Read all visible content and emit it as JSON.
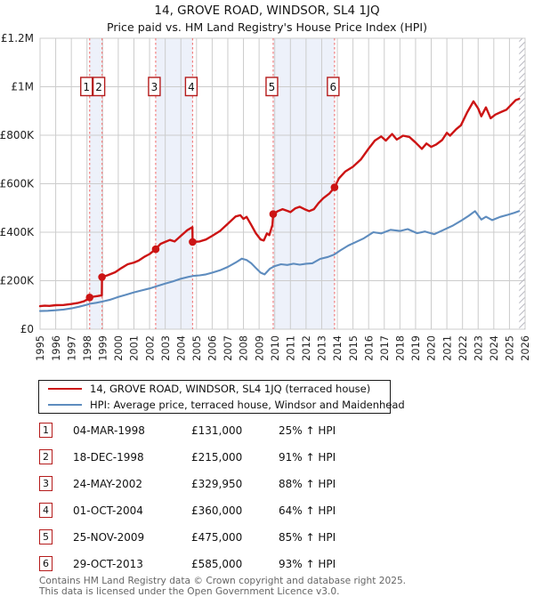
{
  "header": {
    "title": "14, GROVE ROAD, WINDSOR, SL4 1JQ",
    "subtitle": "Price paid vs. HM Land Registry's House Price Index (HPI)"
  },
  "colors": {
    "property": "#cc1414",
    "hpi": "#5e8cbe",
    "dashed": "#f27f7f",
    "band": "#edf1fa",
    "grid": "#cccccc",
    "box_border": "#b51b1b",
    "hatch": "#b9b9c2",
    "footer_text": "#666666"
  },
  "legend": {
    "items": [
      {
        "color_key": "property",
        "label": "14, GROVE ROAD, WINDSOR, SL4 1JQ (terraced house)"
      },
      {
        "color_key": "hpi",
        "label": "HPI: Average price, terraced house, Windsor and Maidenhead"
      }
    ]
  },
  "table": {
    "rows": [
      {
        "num": "1",
        "date": "04-MAR-1998",
        "price": "£131,000",
        "hpi": "25% ↑ HPI"
      },
      {
        "num": "2",
        "date": "18-DEC-1998",
        "price": "£215,000",
        "hpi": "91% ↑ HPI"
      },
      {
        "num": "3",
        "date": "24-MAY-2002",
        "price": "£329,950",
        "hpi": "88% ↑ HPI"
      },
      {
        "num": "4",
        "date": "01-OCT-2004",
        "price": "£360,000",
        "hpi": "64% ↑ HPI"
      },
      {
        "num": "5",
        "date": "25-NOV-2009",
        "price": "£475,000",
        "hpi": "85% ↑ HPI"
      },
      {
        "num": "6",
        "date": "29-OCT-2013",
        "price": "£585,000",
        "hpi": "93% ↑ HPI"
      }
    ]
  },
  "footer": {
    "line1": "Contains HM Land Registry data © Crown copyright and database right 2025.",
    "line2": "This data is licensed under the Open Government Licence v3.0."
  },
  "chart_data": {
    "type": "line",
    "title": "14, GROVE ROAD, WINDSOR, SL4 1JQ — Price paid vs. HPI",
    "xlabel": "",
    "ylabel": "",
    "xlim": [
      1995,
      2026
    ],
    "ylim": [
      0,
      1200000
    ],
    "grid": true,
    "legend_position": "below",
    "x_ticks": [
      1995,
      1996,
      1997,
      1998,
      1999,
      2000,
      2001,
      2002,
      2003,
      2004,
      2005,
      2006,
      2007,
      2008,
      2009,
      2010,
      2011,
      2012,
      2013,
      2014,
      2015,
      2016,
      2017,
      2018,
      2019,
      2020,
      2021,
      2022,
      2023,
      2024,
      2025,
      2026
    ],
    "y_ticks": [
      {
        "v": 0,
        "label": "£0"
      },
      {
        "v": 200000,
        "label": "£200K"
      },
      {
        "v": 400000,
        "label": "£400K"
      },
      {
        "v": 600000,
        "label": "£600K"
      },
      {
        "v": 800000,
        "label": "£800K"
      },
      {
        "v": 1000000,
        "label": "£1M"
      },
      {
        "v": 1200000,
        "label": "£1.2M"
      }
    ],
    "ownership_bands": [
      [
        1998.17,
        1998.96
      ],
      [
        2002.39,
        2004.75
      ],
      [
        2009.9,
        2013.82
      ]
    ],
    "future_hatch_start": 2025.62,
    "transactions": [
      {
        "n": "1",
        "x": 1998.17,
        "price": 131000,
        "date": "04-MAR-1998"
      },
      {
        "n": "2",
        "x": 1998.96,
        "price": 215000,
        "date": "18-DEC-1998"
      },
      {
        "n": "3",
        "x": 2002.39,
        "price": 329950,
        "date": "24-MAY-2002"
      },
      {
        "n": "4",
        "x": 2004.75,
        "price": 360000,
        "date": "01-OCT-2004"
      },
      {
        "n": "5",
        "x": 2009.9,
        "price": 475000,
        "date": "25-NOV-2009"
      },
      {
        "n": "6",
        "x": 2013.82,
        "price": 585000,
        "date": "29-OCT-2013"
      }
    ],
    "series": [
      {
        "name": "14, GROVE ROAD, WINDSOR, SL4 1JQ (terraced house)",
        "color_key": "property",
        "width": 2.4,
        "points": [
          [
            1995.0,
            95000
          ],
          [
            1995.3,
            97000
          ],
          [
            1995.6,
            96000
          ],
          [
            1996.0,
            99000
          ],
          [
            1996.5,
            100000
          ],
          [
            1997.0,
            104000
          ],
          [
            1997.4,
            108000
          ],
          [
            1997.8,
            115000
          ],
          [
            1998.0,
            122000
          ],
          [
            1998.17,
            131000
          ],
          [
            1998.4,
            134000
          ],
          [
            1998.7,
            137000
          ],
          [
            1998.95,
            140000
          ],
          [
            1998.96,
            215000
          ],
          [
            1999.3,
            222000
          ],
          [
            1999.8,
            235000
          ],
          [
            2000.2,
            252000
          ],
          [
            2000.6,
            268000
          ],
          [
            2001.0,
            275000
          ],
          [
            2001.3,
            283000
          ],
          [
            2001.7,
            300000
          ],
          [
            2002.0,
            310000
          ],
          [
            2002.39,
            329950
          ],
          [
            2002.7,
            352000
          ],
          [
            2003.0,
            360000
          ],
          [
            2003.3,
            368000
          ],
          [
            2003.6,
            362000
          ],
          [
            2004.0,
            385000
          ],
          [
            2004.4,
            408000
          ],
          [
            2004.74,
            421000
          ],
          [
            2004.75,
            360000
          ],
          [
            2005.2,
            362000
          ],
          [
            2005.6,
            370000
          ],
          [
            2006.0,
            385000
          ],
          [
            2006.5,
            405000
          ],
          [
            2007.0,
            435000
          ],
          [
            2007.5,
            465000
          ],
          [
            2007.8,
            470000
          ],
          [
            2008.0,
            455000
          ],
          [
            2008.2,
            463000
          ],
          [
            2008.5,
            430000
          ],
          [
            2008.8,
            395000
          ],
          [
            2009.1,
            370000
          ],
          [
            2009.3,
            366000
          ],
          [
            2009.5,
            395000
          ],
          [
            2009.65,
            388000
          ],
          [
            2009.85,
            430000
          ],
          [
            2009.9,
            475000
          ],
          [
            2010.2,
            487000
          ],
          [
            2010.5,
            495000
          ],
          [
            2010.8,
            488000
          ],
          [
            2011.0,
            483000
          ],
          [
            2011.3,
            498000
          ],
          [
            2011.6,
            505000
          ],
          [
            2011.9,
            495000
          ],
          [
            2012.2,
            487000
          ],
          [
            2012.5,
            495000
          ],
          [
            2012.8,
            520000
          ],
          [
            2013.1,
            540000
          ],
          [
            2013.5,
            560000
          ],
          [
            2013.82,
            585000
          ],
          [
            2014.1,
            622000
          ],
          [
            2014.5,
            650000
          ],
          [
            2015.0,
            670000
          ],
          [
            2015.5,
            700000
          ],
          [
            2016.0,
            745000
          ],
          [
            2016.4,
            778000
          ],
          [
            2016.8,
            795000
          ],
          [
            2017.1,
            778000
          ],
          [
            2017.5,
            805000
          ],
          [
            2017.8,
            782000
          ],
          [
            2018.2,
            798000
          ],
          [
            2018.6,
            793000
          ],
          [
            2019.0,
            770000
          ],
          [
            2019.4,
            744000
          ],
          [
            2019.7,
            766000
          ],
          [
            2020.0,
            752000
          ],
          [
            2020.3,
            761000
          ],
          [
            2020.7,
            780000
          ],
          [
            2021.0,
            810000
          ],
          [
            2021.2,
            798000
          ],
          [
            2021.6,
            825000
          ],
          [
            2021.9,
            841000
          ],
          [
            2022.3,
            895000
          ],
          [
            2022.7,
            940000
          ],
          [
            2023.0,
            910000
          ],
          [
            2023.2,
            878000
          ],
          [
            2023.5,
            915000
          ],
          [
            2023.8,
            870000
          ],
          [
            2024.1,
            885000
          ],
          [
            2024.5,
            897000
          ],
          [
            2024.8,
            905000
          ],
          [
            2025.1,
            925000
          ],
          [
            2025.4,
            945000
          ],
          [
            2025.62,
            950000
          ]
        ]
      },
      {
        "name": "HPI: Average price, terraced house, Windsor and Maidenhead",
        "color_key": "hpi",
        "width": 2.1,
        "points": [
          [
            1995.0,
            75000
          ],
          [
            1995.5,
            76000
          ],
          [
            1996.0,
            78000
          ],
          [
            1996.5,
            81000
          ],
          [
            1997.0,
            86000
          ],
          [
            1997.5,
            93000
          ],
          [
            1998.0,
            101000
          ],
          [
            1998.2,
            105000
          ],
          [
            1998.6,
            109000
          ],
          [
            1999.0,
            114000
          ],
          [
            1999.5,
            122000
          ],
          [
            2000.0,
            133000
          ],
          [
            2000.5,
            142000
          ],
          [
            2001.0,
            152000
          ],
          [
            2001.5,
            160000
          ],
          [
            2002.0,
            168000
          ],
          [
            2002.4,
            176000
          ],
          [
            2003.0,
            188000
          ],
          [
            2003.5,
            197000
          ],
          [
            2004.0,
            208000
          ],
          [
            2004.5,
            216000
          ],
          [
            2004.8,
            220000
          ],
          [
            2005.2,
            222000
          ],
          [
            2005.6,
            226000
          ],
          [
            2006.0,
            233000
          ],
          [
            2006.5,
            243000
          ],
          [
            2007.0,
            257000
          ],
          [
            2007.5,
            275000
          ],
          [
            2007.9,
            291000
          ],
          [
            2008.2,
            285000
          ],
          [
            2008.5,
            272000
          ],
          [
            2008.8,
            252000
          ],
          [
            2009.1,
            233000
          ],
          [
            2009.35,
            226000
          ],
          [
            2009.7,
            250000
          ],
          [
            2010.0,
            260000
          ],
          [
            2010.4,
            268000
          ],
          [
            2010.8,
            265000
          ],
          [
            2011.2,
            270000
          ],
          [
            2011.6,
            266000
          ],
          [
            2012.0,
            270000
          ],
          [
            2012.4,
            272000
          ],
          [
            2012.9,
            290000
          ],
          [
            2013.4,
            298000
          ],
          [
            2013.8,
            308000
          ],
          [
            2014.2,
            325000
          ],
          [
            2014.7,
            345000
          ],
          [
            2015.2,
            360000
          ],
          [
            2015.7,
            375000
          ],
          [
            2016.3,
            400000
          ],
          [
            2016.8,
            395000
          ],
          [
            2017.4,
            410000
          ],
          [
            2018.0,
            405000
          ],
          [
            2018.5,
            413000
          ],
          [
            2019.1,
            396000
          ],
          [
            2019.6,
            403000
          ],
          [
            2020.2,
            392000
          ],
          [
            2020.8,
            410000
          ],
          [
            2021.4,
            428000
          ],
          [
            2021.9,
            447000
          ],
          [
            2022.4,
            468000
          ],
          [
            2022.8,
            487000
          ],
          [
            2023.2,
            452000
          ],
          [
            2023.5,
            464000
          ],
          [
            2023.9,
            450000
          ],
          [
            2024.4,
            463000
          ],
          [
            2024.9,
            472000
          ],
          [
            2025.3,
            480000
          ],
          [
            2025.62,
            487000
          ]
        ]
      }
    ]
  }
}
